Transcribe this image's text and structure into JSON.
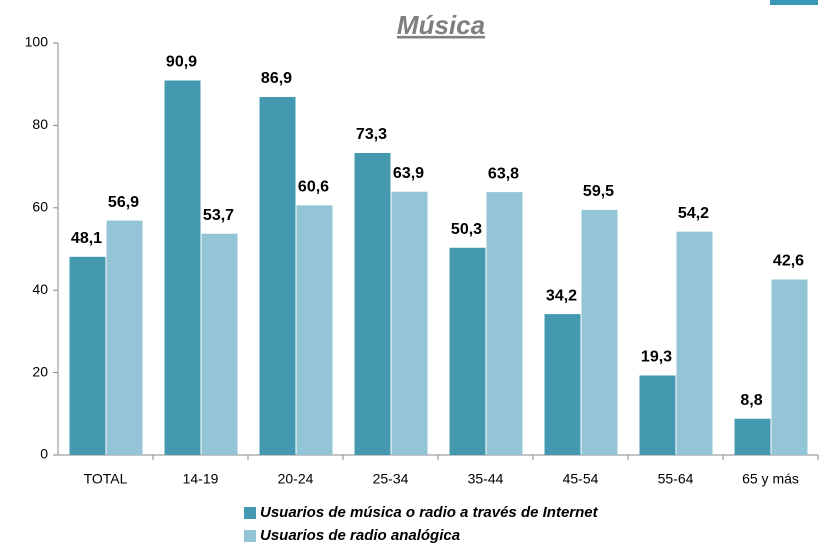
{
  "chart_data": {
    "type": "bar",
    "title": "Música",
    "categories": [
      "TOTAL",
      "14-19",
      "20-24",
      "25-34",
      "35-44",
      "45-54",
      "55-64",
      "65 y más"
    ],
    "series": [
      {
        "name": "Usuarios de música o radio a través de Internet",
        "color": "#4499b0",
        "values": [
          48.1,
          90.9,
          86.9,
          73.3,
          50.3,
          34.2,
          19.3,
          8.8
        ],
        "value_labels": [
          "48,1",
          "90,9",
          "86,9",
          "73,3",
          "50,3",
          "34,2",
          "19,3",
          "8,8"
        ]
      },
      {
        "name": "Usuarios de radio analógica",
        "color": "#93c5d6",
        "values": [
          56.9,
          53.7,
          60.6,
          63.9,
          63.8,
          59.5,
          54.2,
          42.6
        ],
        "value_labels": [
          "56,9",
          "53,7",
          "60,6",
          "63,9",
          "63,8",
          "59,5",
          "54,2",
          "42,6"
        ]
      }
    ],
    "ylim": [
      0,
      100
    ],
    "yticks": [
      0,
      20,
      40,
      60,
      80,
      100
    ],
    "grid": false
  }
}
